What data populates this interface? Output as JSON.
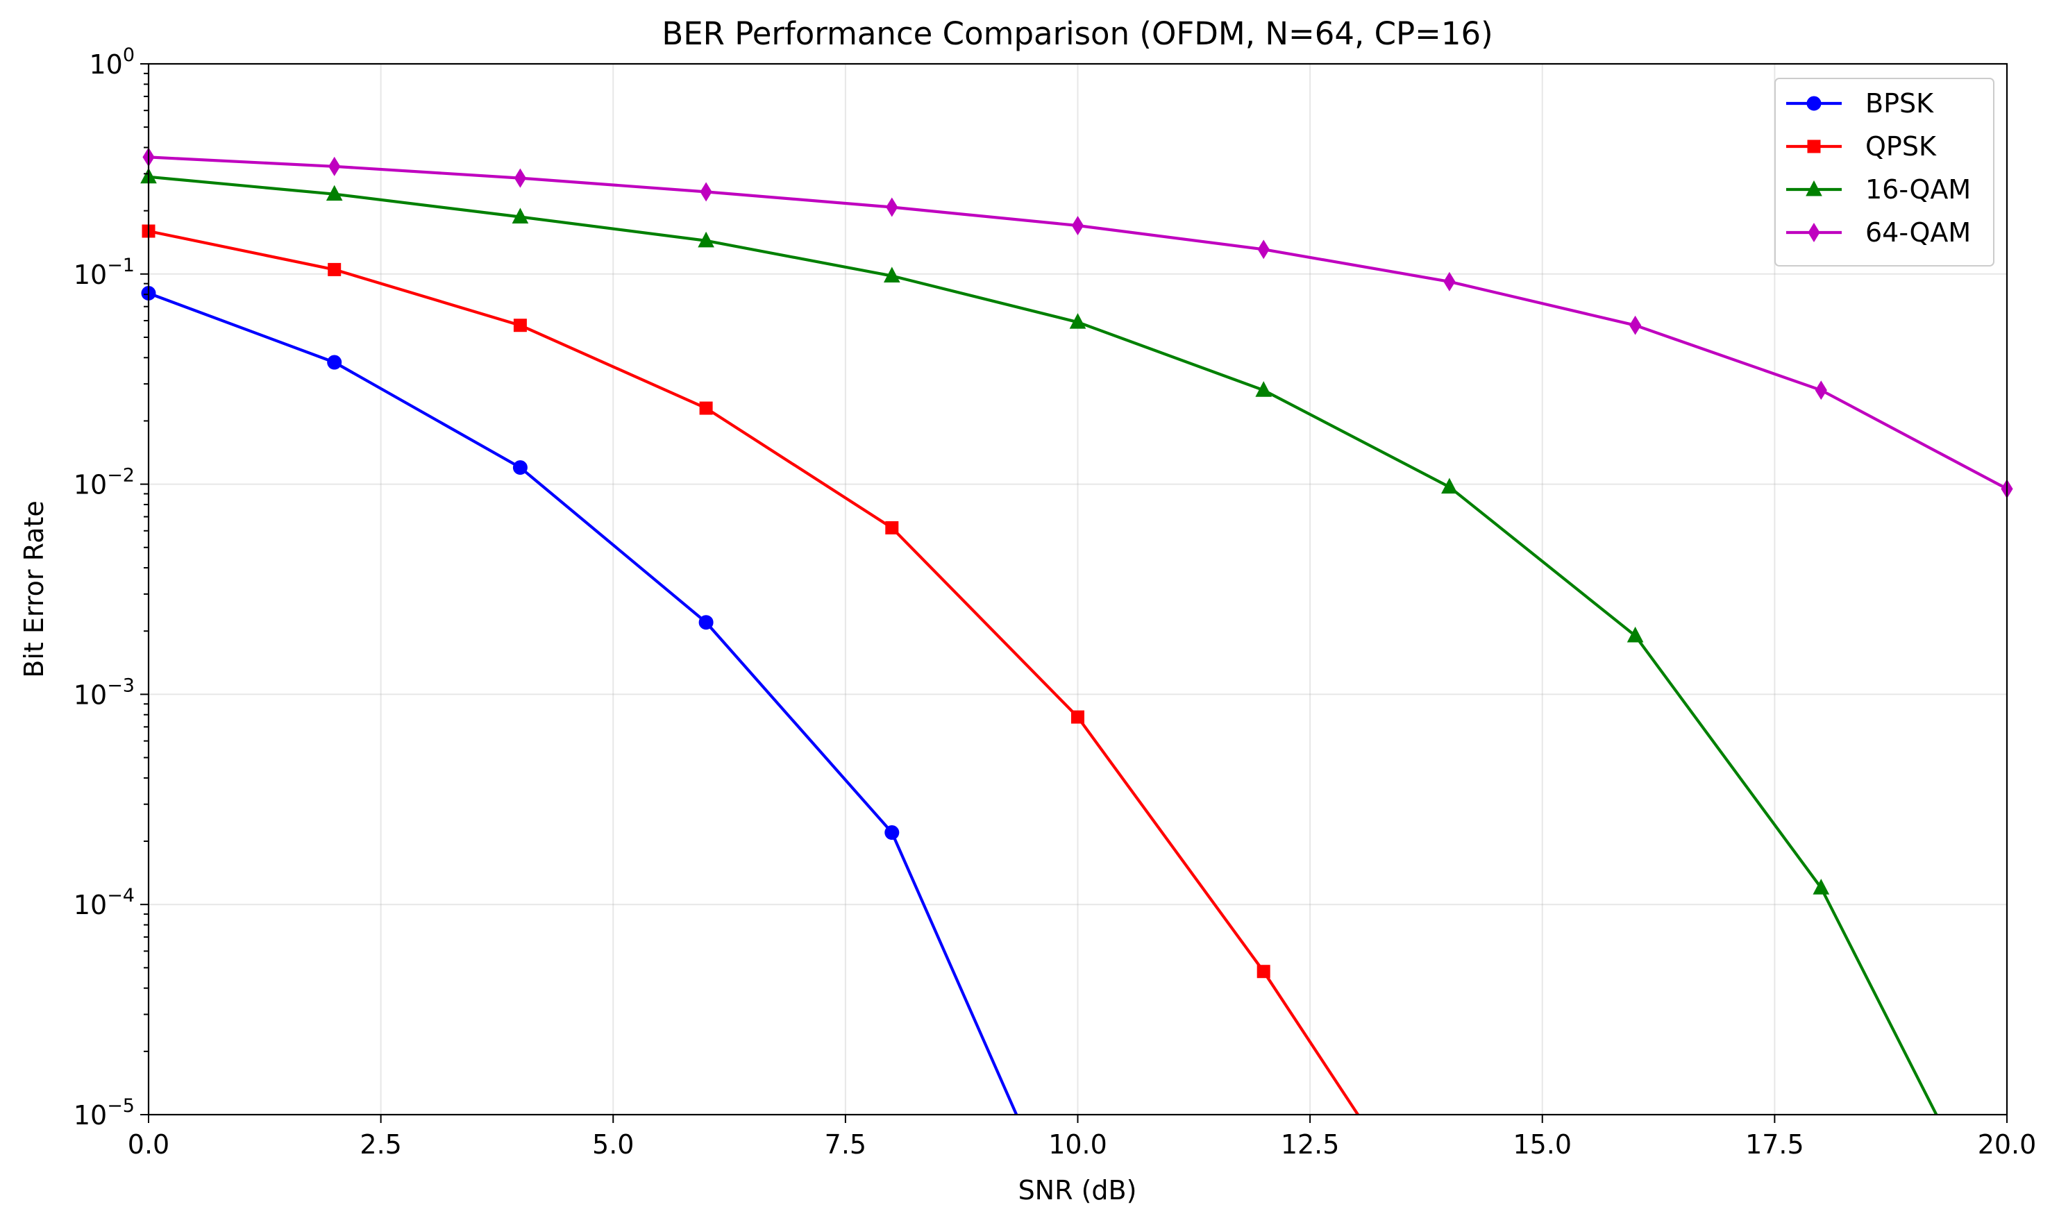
{
  "chart_data": {
    "type": "line",
    "title": "BER Performance Comparison (OFDM, N=64, CP=16)",
    "xlabel": "SNR (dB)",
    "ylabel": "Bit Error Rate",
    "xlim": [
      0,
      20
    ],
    "ylim": [
      1e-05,
      1
    ],
    "yscale": "log",
    "grid": true,
    "legend_position": "top-right",
    "x_ticks": [
      "0.0",
      "2.5",
      "5.0",
      "7.5",
      "10.0",
      "12.5",
      "15.0",
      "17.5",
      "20.0"
    ],
    "y_ticks": [
      {
        "base": "10",
        "exp": "0"
      },
      {
        "base": "10",
        "exp": "−1"
      },
      {
        "base": "10",
        "exp": "−2"
      },
      {
        "base": "10",
        "exp": "−3"
      },
      {
        "base": "10",
        "exp": "−4"
      },
      {
        "base": "10",
        "exp": "−5"
      }
    ],
    "x": [
      0,
      2,
      4,
      6,
      8,
      10,
      12,
      14,
      16,
      18,
      20
    ],
    "series": [
      {
        "name": "BPSK",
        "color": "#0000ff",
        "marker": "circle",
        "values": [
          0.081,
          0.038,
          0.012,
          0.0022,
          0.00022,
          0,
          null,
          null,
          null,
          null,
          null
        ]
      },
      {
        "name": "QPSK",
        "color": "#ff0000",
        "marker": "square",
        "values": [
          0.16,
          0.105,
          0.057,
          0.023,
          0.0062,
          0.00078,
          4.8e-05,
          0,
          null,
          null,
          null
        ]
      },
      {
        "name": "16-QAM",
        "color": "#008000",
        "marker": "triangle",
        "values": [
          0.29,
          0.24,
          0.187,
          0.144,
          0.098,
          0.059,
          0.028,
          0.0097,
          0.0019,
          0.00012,
          0
        ]
      },
      {
        "name": "64-QAM",
        "color": "#bf00bf",
        "marker": "diamond",
        "values": [
          0.36,
          0.325,
          0.286,
          0.246,
          0.208,
          0.17,
          0.131,
          0.092,
          0.057,
          0.028,
          0.0095
        ]
      }
    ]
  }
}
